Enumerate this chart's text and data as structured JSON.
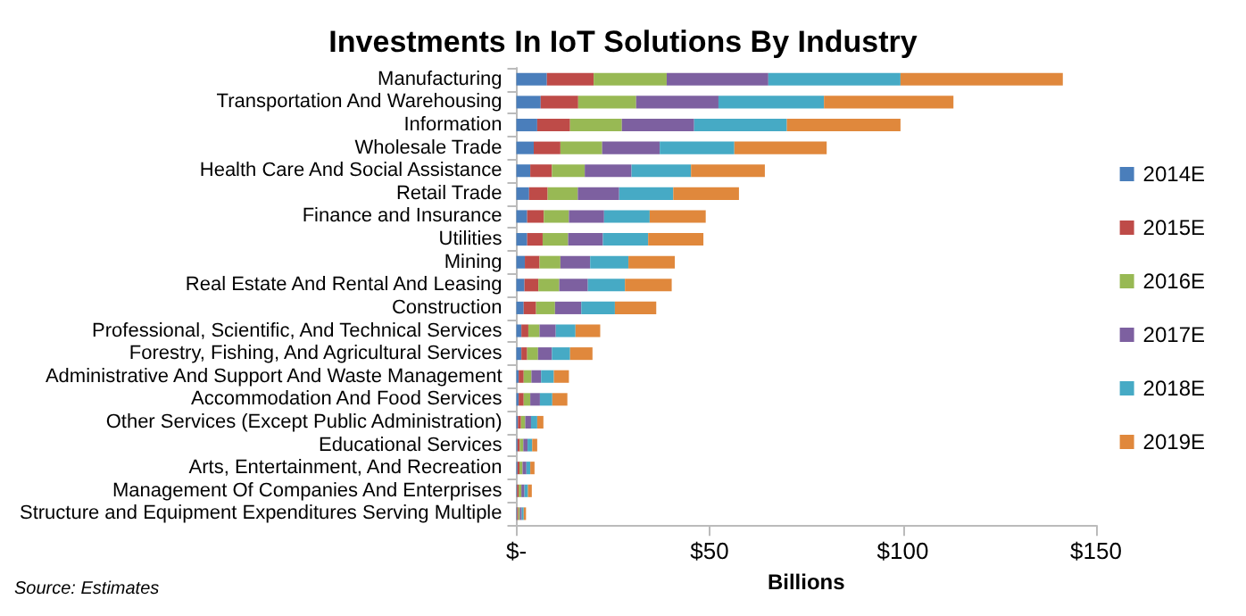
{
  "chart_data": {
    "type": "bar",
    "orientation": "horizontal",
    "stacked": true,
    "title": "Investments In IoT Solutions By Industry",
    "xlabel": "Billions",
    "categories": [
      "Manufacturing",
      "Transportation And Warehousing",
      "Information",
      "Wholesale Trade",
      "Health Care And Social Assistance",
      "Retail Trade",
      "Finance and Insurance",
      "Utilities",
      "Mining",
      "Real Estate And Rental And Leasing",
      "Construction",
      "Professional, Scientific, And Technical Services",
      "Forestry, Fishing, And Agricultural Services",
      "Administrative And Support And Waste Management",
      "Accommodation And Food Services",
      "Other Services (Except Public Administration)",
      "Educational Services",
      "Arts, Entertainment, And Recreation",
      "Management Of Companies And Enterprises",
      "Structure and Equipment Expenditures Serving Multiple"
    ],
    "series": [
      {
        "name": "2014E",
        "color": "#4a7ebb",
        "values": [
          7.9,
          6.3,
          5.4,
          4.5,
          3.6,
          3.3,
          2.8,
          2.8,
          2.2,
          2.1,
          1.9,
          1.3,
          1.3,
          0.6,
          0.6,
          0.4,
          0.3,
          0.3,
          0.2,
          0.2
        ]
      },
      {
        "name": "2015E",
        "color": "#be4b48",
        "values": [
          12.1,
          9.7,
          8.5,
          6.9,
          5.6,
          4.8,
          4.3,
          4.0,
          3.8,
          3.6,
          3.2,
          1.8,
          1.5,
          1.3,
          1.3,
          0.8,
          0.6,
          0.5,
          0.4,
          0.3
        ]
      },
      {
        "name": "2016E",
        "color": "#98b954",
        "values": [
          18.9,
          15.0,
          13.4,
          10.8,
          8.5,
          7.8,
          6.5,
          6.6,
          5.4,
          5.4,
          4.9,
          2.9,
          2.8,
          2.0,
          1.7,
          1.1,
          0.9,
          0.8,
          0.7,
          0.4
        ]
      },
      {
        "name": "2017E",
        "color": "#7d60a0",
        "values": [
          26.3,
          21.3,
          18.7,
          14.9,
          12.1,
          10.7,
          9.1,
          9.0,
          7.7,
          7.4,
          6.8,
          4.2,
          3.6,
          2.5,
          2.5,
          1.5,
          1.1,
          1.0,
          0.8,
          0.5
        ]
      },
      {
        "name": "2018E",
        "color": "#46aac5",
        "values": [
          34.2,
          27.3,
          24.0,
          19.3,
          15.4,
          14.0,
          11.8,
          11.7,
          9.9,
          9.6,
          8.7,
          5.1,
          4.7,
          3.3,
          3.2,
          1.6,
          1.2,
          1.0,
          0.9,
          0.5
        ]
      },
      {
        "name": "2019E",
        "color": "#e0883c",
        "values": [
          42.0,
          33.5,
          29.4,
          23.9,
          19.1,
          17.0,
          14.5,
          14.3,
          12.0,
          12.1,
          10.7,
          6.4,
          5.8,
          3.9,
          3.9,
          1.6,
          1.3,
          1.1,
          1.0,
          0.6
        ]
      }
    ],
    "xlim": [
      0,
      150
    ],
    "xticks": [
      {
        "value": 0,
        "label": "$-"
      },
      {
        "value": 50,
        "label": "$50"
      },
      {
        "value": 100,
        "label": "$100"
      },
      {
        "value": 150,
        "label": "$150"
      }
    ],
    "grid": false,
    "legend": "right",
    "annotations": [
      "Source: Estimates"
    ]
  }
}
